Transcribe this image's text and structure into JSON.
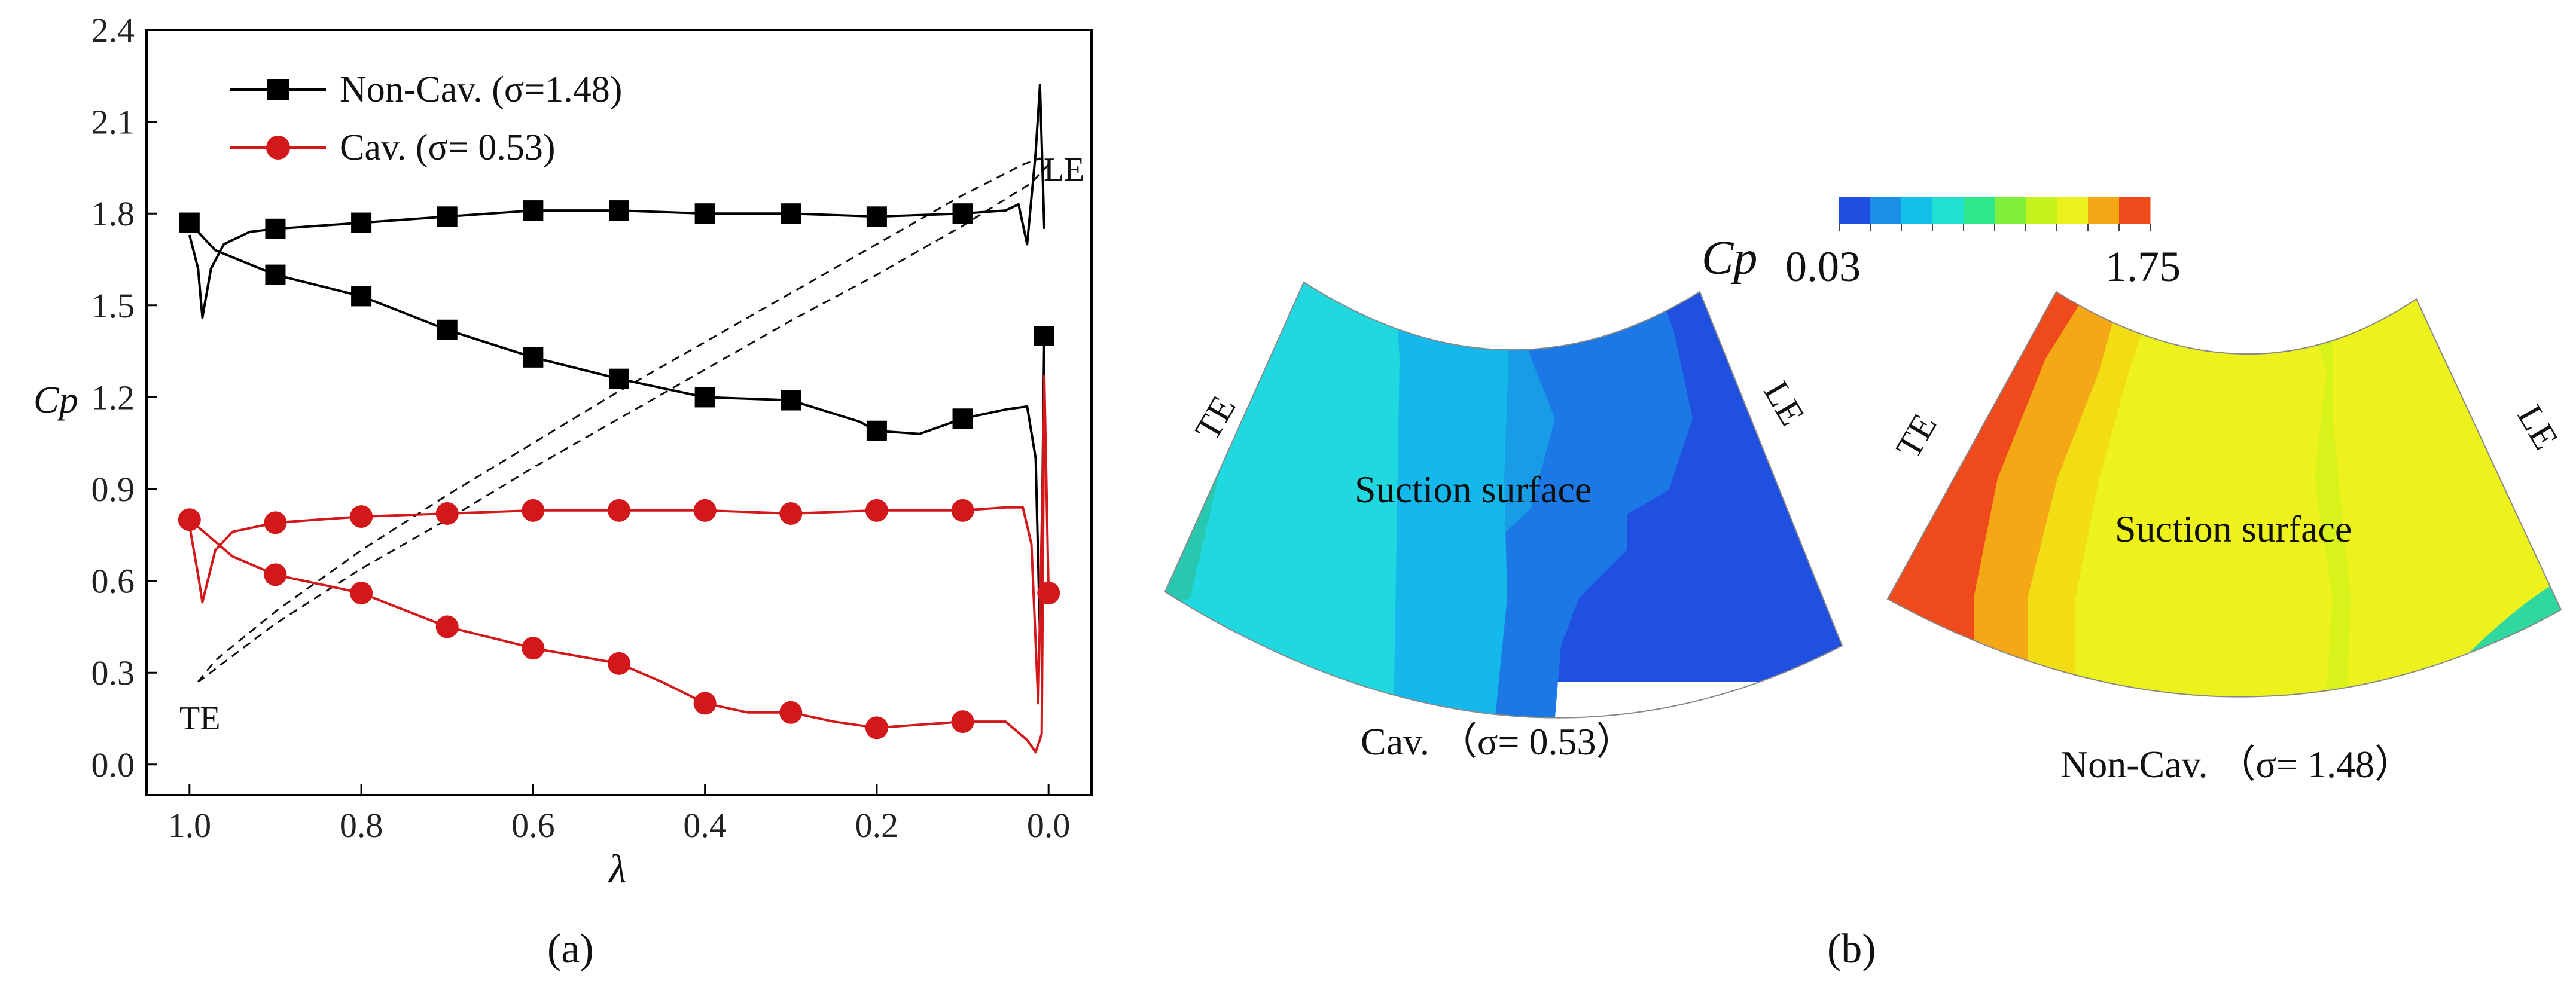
{
  "chart_data": [
    {
      "type": "line",
      "panel_label": "(a)",
      "title": "",
      "xlabel": "λ",
      "ylabel": "Cp",
      "xlim": [
        1.05,
        -0.05
      ],
      "ylim": [
        -0.1,
        2.4
      ],
      "x_ticks": [
        "1.0",
        "0.8",
        "0.6",
        "0.4",
        "0.2",
        "0.0"
      ],
      "y_ticks": [
        "0.0",
        "0.3",
        "0.6",
        "0.9",
        "1.2",
        "1.5",
        "1.8",
        "2.1",
        "2.4"
      ],
      "legend": {
        "position": "top-left",
        "entries": [
          {
            "label": "Non-Cav. (σ=1.48)",
            "color": "#000000",
            "marker": "square"
          },
          {
            "label": "Cav. (σ= 0.53)",
            "color": "#d2181b",
            "marker": "circle"
          }
        ]
      },
      "annotations": [
        "LE",
        "TE"
      ],
      "series": [
        {
          "name": "Non-Cav. (σ=1.48) suction side",
          "color": "#000000",
          "marker": "square",
          "markers": [
            [
              1.0,
              1.77
            ],
            [
              0.9,
              1.6
            ],
            [
              0.8,
              1.53
            ],
            [
              0.7,
              1.42
            ],
            [
              0.6,
              1.33
            ],
            [
              0.5,
              1.26
            ],
            [
              0.4,
              1.2
            ],
            [
              0.3,
              1.19
            ],
            [
              0.2,
              1.09
            ],
            [
              0.1,
              1.13
            ],
            [
              0.005,
              1.4
            ]
          ],
          "curve": [
            [
              1.0,
              1.77
            ],
            [
              0.97,
              1.68
            ],
            [
              0.9,
              1.6
            ],
            [
              0.8,
              1.53
            ],
            [
              0.7,
              1.42
            ],
            [
              0.6,
              1.33
            ],
            [
              0.5,
              1.26
            ],
            [
              0.4,
              1.2
            ],
            [
              0.3,
              1.19
            ],
            [
              0.22,
              1.12
            ],
            [
              0.2,
              1.09
            ],
            [
              0.15,
              1.08
            ],
            [
              0.1,
              1.13
            ],
            [
              0.05,
              1.16
            ],
            [
              0.025,
              1.17
            ],
            [
              0.015,
              1.0
            ],
            [
              0.01,
              0.42
            ],
            [
              0.008,
              0.7
            ],
            [
              0.005,
              1.4
            ]
          ]
        },
        {
          "name": "Non-Cav. (σ=1.48) pressure side",
          "color": "#000000",
          "marker": "square",
          "markers": [
            [
              0.9,
              1.75
            ],
            [
              0.8,
              1.77
            ],
            [
              0.7,
              1.79
            ],
            [
              0.6,
              1.81
            ],
            [
              0.5,
              1.81
            ],
            [
              0.4,
              1.8
            ],
            [
              0.3,
              1.8
            ],
            [
              0.2,
              1.79
            ],
            [
              0.1,
              1.8
            ]
          ],
          "curve": [
            [
              1.0,
              1.73
            ],
            [
              0.99,
              1.62
            ],
            [
              0.985,
              1.46
            ],
            [
              0.975,
              1.62
            ],
            [
              0.96,
              1.7
            ],
            [
              0.93,
              1.74
            ],
            [
              0.9,
              1.75
            ],
            [
              0.8,
              1.77
            ],
            [
              0.7,
              1.79
            ],
            [
              0.6,
              1.81
            ],
            [
              0.5,
              1.81
            ],
            [
              0.4,
              1.8
            ],
            [
              0.3,
              1.8
            ],
            [
              0.2,
              1.79
            ],
            [
              0.1,
              1.8
            ],
            [
              0.05,
              1.81
            ],
            [
              0.035,
              1.83
            ],
            [
              0.025,
              1.7
            ],
            [
              0.015,
              2.0
            ],
            [
              0.01,
              2.22
            ],
            [
              0.005,
              1.75
            ]
          ]
        },
        {
          "name": "Cav. (σ= 0.53) suction side",
          "color": "#d2181b",
          "marker": "circle",
          "markers": [
            [
              1.0,
              0.8
            ],
            [
              0.9,
              0.62
            ],
            [
              0.8,
              0.56
            ],
            [
              0.7,
              0.45
            ],
            [
              0.6,
              0.38
            ],
            [
              0.5,
              0.33
            ],
            [
              0.4,
              0.2
            ],
            [
              0.3,
              0.17
            ],
            [
              0.2,
              0.12
            ],
            [
              0.1,
              0.14
            ],
            [
              0.0,
              0.56
            ]
          ],
          "curve": [
            [
              1.0,
              0.8
            ],
            [
              0.95,
              0.68
            ],
            [
              0.9,
              0.62
            ],
            [
              0.8,
              0.56
            ],
            [
              0.7,
              0.45
            ],
            [
              0.6,
              0.38
            ],
            [
              0.5,
              0.33
            ],
            [
              0.45,
              0.27
            ],
            [
              0.4,
              0.2
            ],
            [
              0.35,
              0.17
            ],
            [
              0.3,
              0.17
            ],
            [
              0.25,
              0.14
            ],
            [
              0.2,
              0.12
            ],
            [
              0.15,
              0.13
            ],
            [
              0.1,
              0.14
            ],
            [
              0.05,
              0.14
            ],
            [
              0.025,
              0.08
            ],
            [
              0.015,
              0.04
            ],
            [
              0.008,
              0.1
            ],
            [
              0.005,
              1.27
            ],
            [
              0.0,
              0.56
            ]
          ]
        },
        {
          "name": "Cav. (σ= 0.53) pressure side",
          "color": "#d2181b",
          "marker": "circle",
          "markers": [
            [
              0.9,
              0.79
            ],
            [
              0.8,
              0.81
            ],
            [
              0.7,
              0.82
            ],
            [
              0.6,
              0.83
            ],
            [
              0.5,
              0.83
            ],
            [
              0.4,
              0.83
            ],
            [
              0.3,
              0.82
            ],
            [
              0.2,
              0.83
            ],
            [
              0.1,
              0.83
            ]
          ],
          "curve": [
            [
              1.0,
              0.78
            ],
            [
              0.99,
              0.62
            ],
            [
              0.985,
              0.53
            ],
            [
              0.97,
              0.7
            ],
            [
              0.95,
              0.76
            ],
            [
              0.9,
              0.79
            ],
            [
              0.8,
              0.81
            ],
            [
              0.7,
              0.82
            ],
            [
              0.6,
              0.83
            ],
            [
              0.5,
              0.83
            ],
            [
              0.4,
              0.83
            ],
            [
              0.3,
              0.82
            ],
            [
              0.2,
              0.83
            ],
            [
              0.1,
              0.83
            ],
            [
              0.05,
              0.84
            ],
            [
              0.03,
              0.84
            ],
            [
              0.02,
              0.72
            ],
            [
              0.012,
              0.2
            ],
            [
              0.005,
              1.2
            ]
          ]
        }
      ],
      "blade_outline": {
        "style": "dashed",
        "points": [
          [
            0.99,
            0.27
          ],
          [
            0.97,
            0.34
          ],
          [
            0.9,
            0.5
          ],
          [
            0.8,
            0.7
          ],
          [
            0.7,
            0.88
          ],
          [
            0.6,
            1.05
          ],
          [
            0.5,
            1.22
          ],
          [
            0.4,
            1.38
          ],
          [
            0.3,
            1.54
          ],
          [
            0.2,
            1.7
          ],
          [
            0.1,
            1.86
          ],
          [
            0.03,
            1.96
          ],
          [
            0.01,
            1.98
          ],
          [
            0.0,
            1.96
          ],
          [
            0.02,
            1.9
          ],
          [
            0.1,
            1.76
          ],
          [
            0.2,
            1.6
          ],
          [
            0.3,
            1.45
          ],
          [
            0.4,
            1.29
          ],
          [
            0.5,
            1.13
          ],
          [
            0.6,
            0.97
          ],
          [
            0.7,
            0.8
          ],
          [
            0.8,
            0.64
          ],
          [
            0.9,
            0.46
          ],
          [
            0.99,
            0.27
          ]
        ]
      }
    },
    {
      "type": "heatmap",
      "panel_label": "(b)",
      "title": "Cp",
      "colorbar": {
        "min": "0.03",
        "max": "1.75",
        "colors": [
          "#1f4fe0",
          "#1c8ee6",
          "#13c0ea",
          "#20e0d4",
          "#2fe88a",
          "#7fef3a",
          "#c6f21c",
          "#eef21c",
          "#f5a816",
          "#ee4a1c"
        ]
      },
      "maps": [
        {
          "label": "Cav. （σ= 0.53）",
          "surface_label": "Suction surface",
          "te_label": "TE",
          "le_label": "LE",
          "region_colors": [
            "#28c8b0",
            "#20d8e0",
            "#14b8ea",
            "#189ce6",
            "#1c78e4",
            "#1f50e0"
          ]
        },
        {
          "label": "Non-Cav. （σ= 1.48）",
          "surface_label": "Suction surface",
          "te_label": "TE",
          "le_label": "LE",
          "region_colors": [
            "#ee4a1c",
            "#f5a816",
            "#f2dc14",
            "#eef21c",
            "#d8f21c",
            "#30d8a0"
          ]
        }
      ]
    }
  ]
}
